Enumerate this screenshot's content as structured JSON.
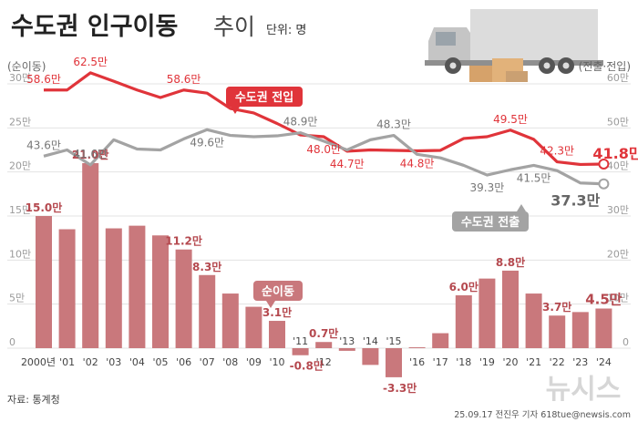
{
  "header": {
    "title": "수도권 인구이동",
    "title_suffix": "추이",
    "unit": "단위: 명"
  },
  "axes": {
    "left_label": "(순이동)",
    "right_label": "(전출·전입)",
    "left_ticks": [
      "30만",
      "25만",
      "20만",
      "15만",
      "10만",
      "5만",
      "0"
    ],
    "right_ticks": [
      "60만",
      "50만",
      "40만",
      "30만",
      "20만",
      "10만",
      "0"
    ]
  },
  "footer": {
    "source": "자료: 통계청",
    "credit": "25.09.17 전진우 기자 618tue@newsis.com",
    "watermark": "뉴시스"
  },
  "chart_data": {
    "type": "bar+line",
    "categories": [
      "2000년",
      "'01",
      "'02",
      "'03",
      "'04",
      "'05",
      "'06",
      "'07",
      "'08",
      "'09",
      "'10",
      "'11",
      "'12",
      "'13",
      "'14",
      "'15",
      "'16",
      "'17",
      "'18",
      "'19",
      "'20",
      "'21",
      "'22",
      "'23",
      "'24"
    ],
    "bar_series": {
      "values": [
        15.0,
        13.5,
        21.0,
        13.6,
        13.9,
        12.8,
        11.2,
        8.3,
        6.2,
        4.7,
        3.1,
        -0.8,
        0.7,
        -0.3,
        -1.9,
        -3.3,
        0.1,
        1.7,
        6.0,
        7.9,
        8.8,
        6.2,
        3.7,
        4.1,
        4.5
      ],
      "labels": {
        "0": "15.0만",
        "2": "21.0만",
        "6": "11.2만",
        "7": "8.3만",
        "10": "3.1만",
        "11": "-0.8만",
        "12": "0.7만",
        "15": "-3.3만",
        "18": "6.0만",
        "20": "8.8만",
        "22": "3.7만",
        "24": "4.5만"
      },
      "highlight_label": "순이동",
      "ylim": [
        -5,
        30
      ]
    },
    "line_series": [
      {
        "name": "수도권 전입",
        "values": [
          58.6,
          58.6,
          62.5,
          60.6,
          58.6,
          56.9,
          58.6,
          57.9,
          54.4,
          53.4,
          51.0,
          48.4,
          48.0,
          44.7,
          45.0,
          44.9,
          44.8,
          44.9,
          47.6,
          48.0,
          49.5,
          47.4,
          42.3,
          41.7,
          41.8
        ],
        "labels": {
          "0": "58.6만",
          "2": "62.5만",
          "6": "58.6만",
          "12": "48.0만",
          "13": "44.7만",
          "16": "44.8만",
          "20": "49.5만",
          "22": "42.3만",
          "24": "41.8만"
        }
      },
      {
        "name": "수도권 전출",
        "values": [
          43.6,
          45.0,
          41.6,
          47.3,
          45.2,
          45.0,
          47.5,
          49.6,
          48.3,
          48.0,
          48.2,
          48.9,
          47.0,
          45.0,
          47.3,
          48.3,
          44.0,
          43.2,
          41.5,
          39.3,
          40.5,
          41.5,
          40.3,
          37.5,
          37.3
        ],
        "labels": {
          "0": "43.6만",
          "2": "41.6만",
          "7": "49.6만",
          "11": "48.9만",
          "15": "48.3만",
          "19": "39.3만",
          "21": "41.5만",
          "24": "37.3만"
        }
      }
    ],
    "y2lim": [
      -10,
      60
    ],
    "colors": {
      "inflow": "#e0343a",
      "outflow": "#a3a3a3",
      "bar": "#c9787c",
      "highlight": "#c9787c"
    }
  }
}
